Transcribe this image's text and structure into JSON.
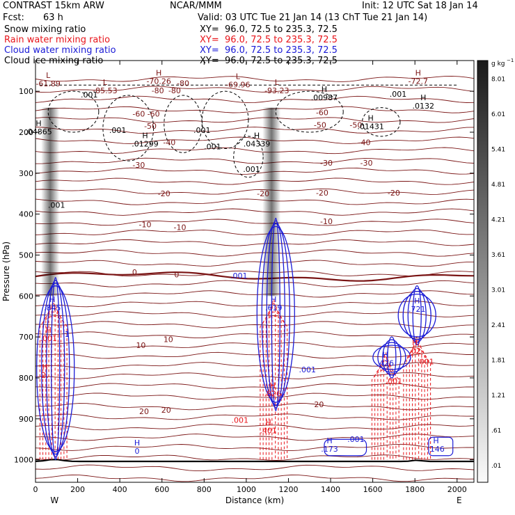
{
  "header": {
    "model": "CONTRAST 15km ARW",
    "center": "NCAR/MMM",
    "init": "Init: 12 UTC Sat 18 Jan 14",
    "fcst_label": "Fcst:",
    "fcst_value": "63 h",
    "valid": "Valid: 03 UTC Tue 21 Jan 14 (13 ChT Tue 21 Jan 14)"
  },
  "colors": {
    "snow": "#000000",
    "rain": "#e8141a",
    "cloud_water": "#1a1ad6",
    "cloud_ice": "#000000",
    "temperature": "#7a1414",
    "background": "#ffffff"
  },
  "chart_data": {
    "type": "contour-cross-section",
    "legend": [
      {
        "name": "Snow mixing ratio",
        "color": "#000000",
        "xy": "XY=  96.0, 72.5 to 235.3, 72.5"
      },
      {
        "name": "Rain water mixing ratio",
        "color": "#e8141a",
        "xy": "XY=  96.0, 72.5 to 235.3, 72.5"
      },
      {
        "name": "Cloud water mixing ratio",
        "color": "#1a1ad6",
        "xy": "XY=  96.0, 72.5 to 235.3, 72.5"
      },
      {
        "name": "Cloud ice mixing ratio",
        "color": "#000000",
        "xy": "XY=  96.0, 72.5 to 235.3, 72.5"
      }
    ],
    "xlabel": "Distance (km)",
    "ylabel": "Pressure (hPa)",
    "xlim": [
      0,
      2080
    ],
    "ylim": [
      1055,
      25
    ],
    "x_ticks": [
      0,
      200,
      400,
      600,
      800,
      1000,
      1200,
      1400,
      1600,
      1800,
      2000
    ],
    "y_ticks": [
      100,
      200,
      300,
      400,
      500,
      600,
      700,
      800,
      900,
      1000
    ],
    "x_end_labels": {
      "left": "W",
      "right": "E"
    },
    "colorbar": {
      "unit": "g kg",
      "unit_exp": "−1",
      "labels": [
        "8.01",
        "6.01",
        "5.41",
        "4.81",
        "4.21",
        "3.61",
        "3.01",
        "2.41",
        "1.81",
        "1.21",
        ".61",
        ".01"
      ]
    },
    "temperature_contour_labels": [
      {
        "text": "-80",
        "x": 700,
        "p": 80
      },
      {
        "text": "-80",
        "x": 580,
        "p": 98
      },
      {
        "text": "-80",
        "x": 660,
        "p": 98
      },
      {
        "text": "-60",
        "x": 490,
        "p": 155
      },
      {
        "text": "-60",
        "x": 560,
        "p": 155
      },
      {
        "text": "-60",
        "x": 1360,
        "p": 152
      },
      {
        "text": "-50",
        "x": 545,
        "p": 185
      },
      {
        "text": "-50",
        "x": 1350,
        "p": 182
      },
      {
        "text": "-50",
        "x": 1520,
        "p": 182
      },
      {
        "text": "-40",
        "x": 635,
        "p": 225
      },
      {
        "text": "-40",
        "x": 1560,
        "p": 225
      },
      {
        "text": "-30",
        "x": 490,
        "p": 280
      },
      {
        "text": "-30",
        "x": 1380,
        "p": 275
      },
      {
        "text": "-30",
        "x": 1570,
        "p": 275
      },
      {
        "text": "-20",
        "x": 610,
        "p": 350
      },
      {
        "text": "-20",
        "x": 1080,
        "p": 350
      },
      {
        "text": "-20",
        "x": 1360,
        "p": 348
      },
      {
        "text": "-20",
        "x": 1700,
        "p": 348
      },
      {
        "text": "-10",
        "x": 520,
        "p": 425
      },
      {
        "text": "-10",
        "x": 685,
        "p": 432
      },
      {
        "text": "-10",
        "x": 1380,
        "p": 418
      },
      {
        "text": "0",
        "x": 470,
        "p": 542
      },
      {
        "text": "0",
        "x": 670,
        "p": 548
      },
      {
        "text": "10",
        "x": 500,
        "p": 720
      },
      {
        "text": "10",
        "x": 630,
        "p": 706
      },
      {
        "text": "20",
        "x": 515,
        "p": 882
      },
      {
        "text": "20",
        "x": 620,
        "p": 878
      },
      {
        "text": "20",
        "x": 1345,
        "p": 865
      }
    ],
    "hl_markers": [
      {
        "type": "L",
        "value": "-61.89",
        "x": 60,
        "p": 78
      },
      {
        "type": "H",
        "value": "-70.26",
        "x": 585,
        "p": 72
      },
      {
        "type": "L",
        "value": "-85.53",
        "x": 330,
        "p": 95
      },
      {
        "type": "L",
        "value": "-69.96",
        "x": 960,
        "p": 80
      },
      {
        "type": "L",
        "value": "-93.23",
        "x": 1145,
        "p": 95
      },
      {
        "type": "H",
        "value": "-72.7",
        "x": 1815,
        "p": 72
      },
      {
        "type": "H",
        "value": ".04865",
        "x": 15,
        "p": 195
      },
      {
        "type": "H",
        "value": ".01299",
        "x": 520,
        "p": 225
      },
      {
        "type": "H",
        "value": ".04339",
        "x": 1050,
        "p": 225
      },
      {
        "type": "H",
        "value": ".00987",
        "x": 1370,
        "p": 112
      },
      {
        "type": "H",
        "value": ".0132",
        "x": 1840,
        "p": 132
      },
      {
        "type": "H",
        "value": ".01431",
        "x": 1590,
        "p": 182
      },
      {
        "type": "H",
        "value": ".845",
        "x": 80,
        "p": 625
      },
      {
        "type": "H",
        "value": ".619",
        "x": 1130,
        "p": 625
      },
      {
        "type": "H",
        "value": ".721",
        "x": 1810,
        "p": 628
      },
      {
        "type": "H",
        "value": ".426",
        "x": 1660,
        "p": 760
      },
      {
        "type": "H",
        "value": ".02",
        "x": 1800,
        "p": 730
      },
      {
        "type": "H",
        "value": ".826",
        "x": 1125,
        "p": 835
      },
      {
        "type": "H",
        "value": ".401",
        "x": 1105,
        "p": 925
      },
      {
        "type": "H",
        "value": ".173",
        "x": 1395,
        "p": 970
      },
      {
        "type": "H",
        "value": ".146",
        "x": 1900,
        "p": 970
      },
      {
        "type": "H",
        "value": "0",
        "x": 482,
        "p": 975
      },
      {
        "type": "H",
        "value": "2.",
        "x": 45,
        "p": 790
      },
      {
        "type": "H",
        "value": ".001",
        "x": 62,
        "p": 700
      }
    ],
    "small_labels": [
      {
        "text": ".001",
        "x": 255,
        "p": 108,
        "color": "#000000"
      },
      {
        "text": ".001",
        "x": 390,
        "p": 195,
        "color": "#000000"
      },
      {
        "text": ".001",
        "x": 790,
        "p": 195,
        "color": "#000000"
      },
      {
        "text": ".001",
        "x": 840,
        "p": 235,
        "color": "#000000"
      },
      {
        "text": ".001",
        "x": 1720,
        "p": 107,
        "color": "#000000"
      },
      {
        "text": ".001",
        "x": 1025,
        "p": 290,
        "color": "#000000"
      },
      {
        "text": ".001",
        "x": 100,
        "p": 378,
        "color": "#000000"
      },
      {
        "text": ".001",
        "x": 965,
        "p": 550,
        "color": "#1a1ad6"
      },
      {
        "text": ".001",
        "x": 1290,
        "p": 780,
        "color": "#1a1ad6"
      },
      {
        "text": ".001",
        "x": 1520,
        "p": 950,
        "color": "#1a1ad6"
      },
      {
        "text": ".001",
        "x": 970,
        "p": 903,
        "color": "#e8141a"
      },
      {
        "text": ".001",
        "x": 1700,
        "p": 808,
        "color": "#e8141a"
      },
      {
        "text": ".001",
        "x": 1850,
        "p": 760,
        "color": "#e8141a"
      },
      {
        "text": "1",
        "x": 150,
        "p": 693,
        "color": "#1a1ad6"
      }
    ],
    "snow_columns_x": [
      70,
      1120
    ],
    "rain_columns": [
      {
        "x": 85,
        "p_top": 600,
        "p_bottom": 1000
      },
      {
        "x": 1130,
        "p_top": 600,
        "p_bottom": 1000
      },
      {
        "x": 1660,
        "p_top": 730,
        "p_bottom": 1000
      },
      {
        "x": 1810,
        "p_top": 690,
        "p_bottom": 1000
      }
    ],
    "cloud_water_cells": [
      {
        "x": 95,
        "p_top": 555,
        "p_bottom": 1000
      },
      {
        "x": 1140,
        "p_top": 410,
        "p_bottom": 880
      },
      {
        "x": 1810,
        "p_top": 575,
        "p_bottom": 720
      },
      {
        "x": 1690,
        "p_top": 700,
        "p_bottom": 800
      }
    ]
  }
}
